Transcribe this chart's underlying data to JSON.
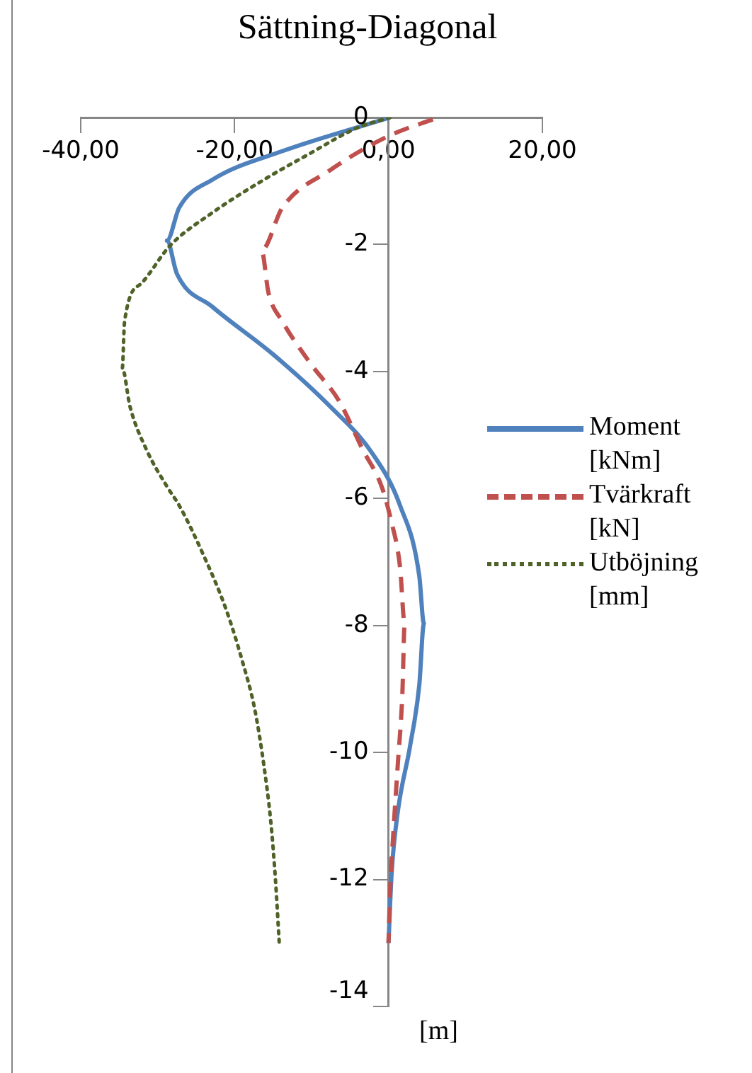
{
  "chart_data": {
    "type": "line",
    "title": "Sättning-Diagonal",
    "annotations": [
      "[m]"
    ],
    "xlim": [
      -40,
      20
    ],
    "xticks": [
      {
        "value": -40,
        "label": "-40,00"
      },
      {
        "value": -20,
        "label": "-20,00"
      },
      {
        "value": 0,
        "label": "0,00"
      },
      {
        "value": 20,
        "label": "20,00"
      }
    ],
    "ylim": [
      -14,
      0
    ],
    "yticks": [
      0,
      -2,
      -4,
      -6,
      -8,
      -10,
      -12,
      -14
    ],
    "grid": false,
    "legend": "right",
    "marker": "none",
    "series": [
      {
        "name": "Moment [kNm]",
        "color": "#4f81bd",
        "line_style": "solid",
        "x": [
          0.2,
          -13.8,
          -22.9,
          -27.2,
          -28.8,
          -27.5,
          -22.9,
          -15.0,
          -7.6,
          -2.1,
          1.5,
          4.0,
          4.6,
          4.0,
          2.8,
          1.2,
          0.4,
          0
        ],
        "values": [
          0,
          -0.53,
          -0.98,
          -1.42,
          -1.94,
          -2.46,
          -2.98,
          -3.73,
          -4.55,
          -5.29,
          -6.11,
          -7.22,
          -7.97,
          -8.94,
          -9.9,
          -10.94,
          -11.91,
          -13
        ]
      },
      {
        "name": "Tvärkraft [kN]",
        "color": "#c0504d",
        "line_style": "dashed",
        "x": [
          6.4,
          -0.3,
          -7.6,
          -13.8,
          -16.5,
          -15.6,
          -13.8,
          -10.1,
          -6.4,
          -3.4,
          -0.9,
          0.3,
          1.5,
          2.1,
          1.8,
          1.2,
          0.6,
          0.2,
          0
        ],
        "values": [
          0,
          -0.31,
          -0.83,
          -1.42,
          -2.09,
          -2.76,
          -3.21,
          -3.88,
          -4.47,
          -5.22,
          -5.81,
          -6.33,
          -7.08,
          -7.97,
          -9.08,
          -10.2,
          -11.32,
          -12.2,
          -13
        ]
      },
      {
        "name": "Utböjning [mm]",
        "color": "#4f6228",
        "line_style": "dotted",
        "x": [
          0.2,
          -4.0,
          -10.7,
          -16.2,
          -22.9,
          -28.4,
          -32.1,
          -34.3,
          -34.6,
          -33.6,
          -31.5,
          -28.8,
          -27.2,
          -24.2,
          -21.1,
          -19.0,
          -17.4,
          -16.2,
          -15.3,
          -14.7,
          -14.2
        ],
        "values": [
          0,
          -0.16,
          -0.6,
          -0.98,
          -1.5,
          -2.02,
          -2.61,
          -3.21,
          -3.95,
          -4.55,
          -5.22,
          -5.81,
          -6.11,
          -6.85,
          -7.75,
          -8.56,
          -9.31,
          -10.2,
          -11.09,
          -11.99,
          -13
        ]
      }
    ]
  }
}
